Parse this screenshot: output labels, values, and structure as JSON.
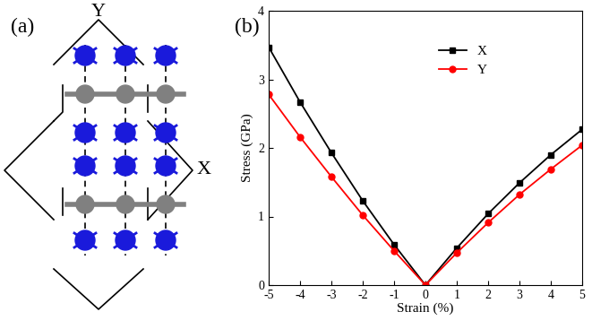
{
  "chart_data": {
    "type": "line",
    "panel_label": "(b)",
    "x_label": "Strain (%)",
    "y_label": "Stress (GPa)",
    "x": [
      -5,
      -4,
      -3,
      -2,
      -1,
      0,
      1,
      2,
      3,
      4,
      5
    ],
    "series": [
      {
        "name": "X",
        "color": "#000000",
        "marker": "square",
        "line_style": "solid",
        "values": [
          3.47,
          2.67,
          1.93,
          1.23,
          0.59,
          0.0,
          0.54,
          1.04,
          1.49,
          1.9,
          2.27
        ]
      },
      {
        "name": "Y",
        "color": "#ff0000",
        "marker": "circle",
        "line_style": "solid",
        "values": [
          2.78,
          2.16,
          1.58,
          1.02,
          0.5,
          0.0,
          0.47,
          0.91,
          1.32,
          1.69,
          2.04
        ]
      }
    ],
    "xlim": [
      -5,
      5
    ],
    "xticks": [
      -5,
      -4,
      -3,
      -2,
      -1,
      0,
      1,
      2,
      3,
      4,
      5
    ],
    "ylim": [
      0,
      4
    ],
    "yticks": [
      0,
      1,
      2,
      3,
      4
    ],
    "legend": "upper center"
  },
  "diagram": {
    "panel_label": "(a)",
    "direction_labels": [
      "Y",
      "X"
    ]
  }
}
